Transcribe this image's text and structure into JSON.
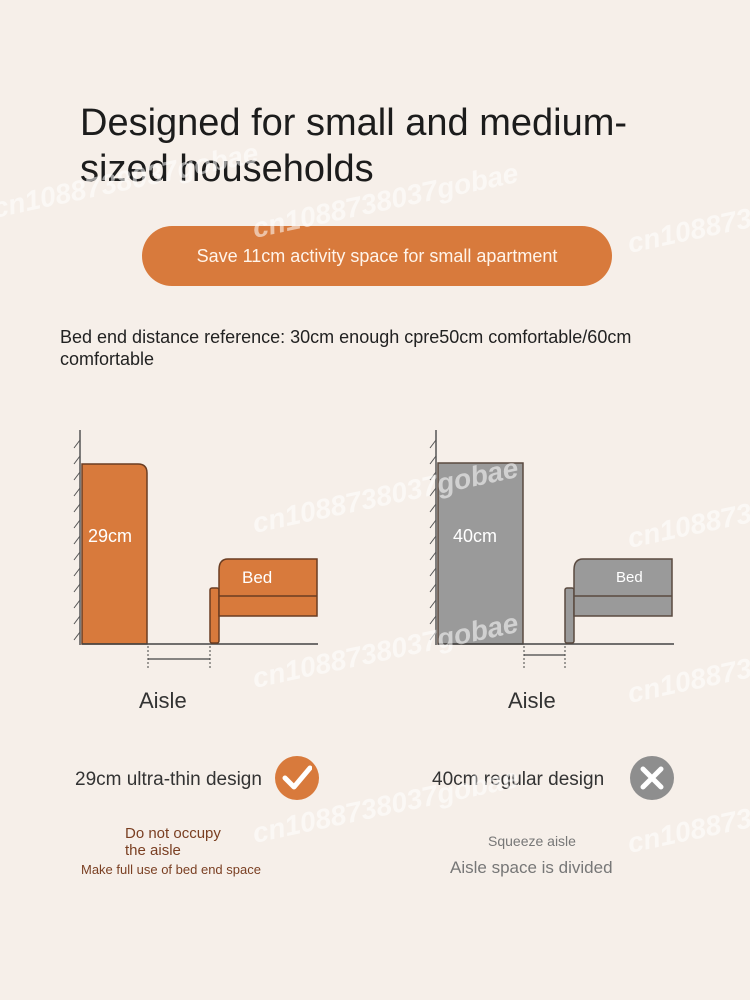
{
  "title": "Designed for small and medium-sized households",
  "banner": "Save 11cm activity space for small apartment",
  "reference": "Bed end distance reference: 30cm enough cpre50cm comfortable/60cm comfortable",
  "left": {
    "thickness_label": "29cm",
    "bed_label": "Bed",
    "aisle_label": "Aisle",
    "design_label": "29cm ultra-thin design",
    "note_1": "Do not occupy the aisle",
    "note_2": "Make full use of bed end space",
    "badge_icon": "check-icon",
    "color": "#d87a3c"
  },
  "right": {
    "thickness_label": "40cm",
    "bed_label": "Bed",
    "aisle_label": "Aisle",
    "design_label": "40cm regular design",
    "note_1": "Squeeze aisle",
    "note_2": "Aisle space is divided",
    "badge_icon": "cross-icon",
    "color": "#9a9a9a"
  },
  "watermark": "cn1088738037gobae"
}
